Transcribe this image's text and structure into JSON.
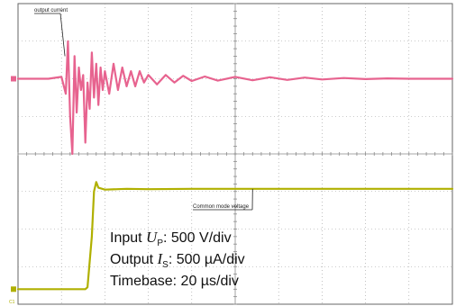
{
  "chart_data": {
    "type": "line",
    "grid": true,
    "x_divisions": 10,
    "y_divisions": 8,
    "x_unit_per_div": "20 µs",
    "series": [
      {
        "name": "output current",
        "color": "#e7638f",
        "x": [
          0,
          0.7,
          1.0,
          1.1,
          1.15,
          1.2,
          1.25,
          1.3,
          1.35,
          1.4,
          1.45,
          1.5,
          1.55,
          1.6,
          1.65,
          1.7,
          1.75,
          1.8,
          1.85,
          1.9,
          1.95,
          2.0,
          2.1,
          2.2,
          2.3,
          2.4,
          2.5,
          2.6,
          2.7,
          2.8,
          2.9,
          3.0,
          3.2,
          3.4,
          3.6,
          3.8,
          4.0,
          4.3,
          4.6,
          5.0,
          5.4,
          5.8,
          6.2,
          6.6,
          7.0,
          7.5,
          8.0,
          8.5,
          9.0,
          9.5,
          10.0
        ],
        "y": [
          2.0,
          2.0,
          2.05,
          1.6,
          3.0,
          1.0,
          0.0,
          2.6,
          1.1,
          2.3,
          1.7,
          2.1,
          0.3,
          1.9,
          1.2,
          2.7,
          1.5,
          2.4,
          1.3,
          2.3,
          1.7,
          2.2,
          1.6,
          2.4,
          1.7,
          2.3,
          1.8,
          2.2,
          1.8,
          2.2,
          1.9,
          2.1,
          1.85,
          2.1,
          1.9,
          2.08,
          1.94,
          2.06,
          1.95,
          2.05,
          1.96,
          2.04,
          1.97,
          2.03,
          1.98,
          2.02,
          1.99,
          2.01,
          2.0,
          2.0,
          2.0
        ]
      },
      {
        "name": "Common mode voltage",
        "color": "#b0b000",
        "x": [
          0,
          1.55,
          1.6,
          1.7,
          1.75,
          1.8,
          1.85,
          2.0,
          2.5,
          3.0,
          4.0,
          5.0,
          6.0,
          7.0,
          8.0,
          9.0,
          10.0
        ],
        "y": [
          -3.6,
          -3.6,
          -3.55,
          -2.2,
          -1.0,
          -0.75,
          -0.9,
          -0.95,
          -0.93,
          -0.94,
          -0.93,
          -0.93,
          -0.93,
          -0.93,
          -0.93,
          -0.93,
          -0.93
        ]
      }
    ],
    "annotations": [
      {
        "text": "output current",
        "series": 0
      },
      {
        "text": "Common mode voltage",
        "series": 1
      }
    ],
    "channel_labels": [
      "C1"
    ],
    "settings_text": {
      "input_prefix": "Input ",
      "input_symbol": "U",
      "input_sub": "P",
      "input_value": ": 500 V/div",
      "output_prefix": "Output ",
      "output_symbol": "I",
      "output_sub": "S",
      "output_value": ": 500 µA/div",
      "timebase": "Timebase: 20 µs/div"
    }
  }
}
